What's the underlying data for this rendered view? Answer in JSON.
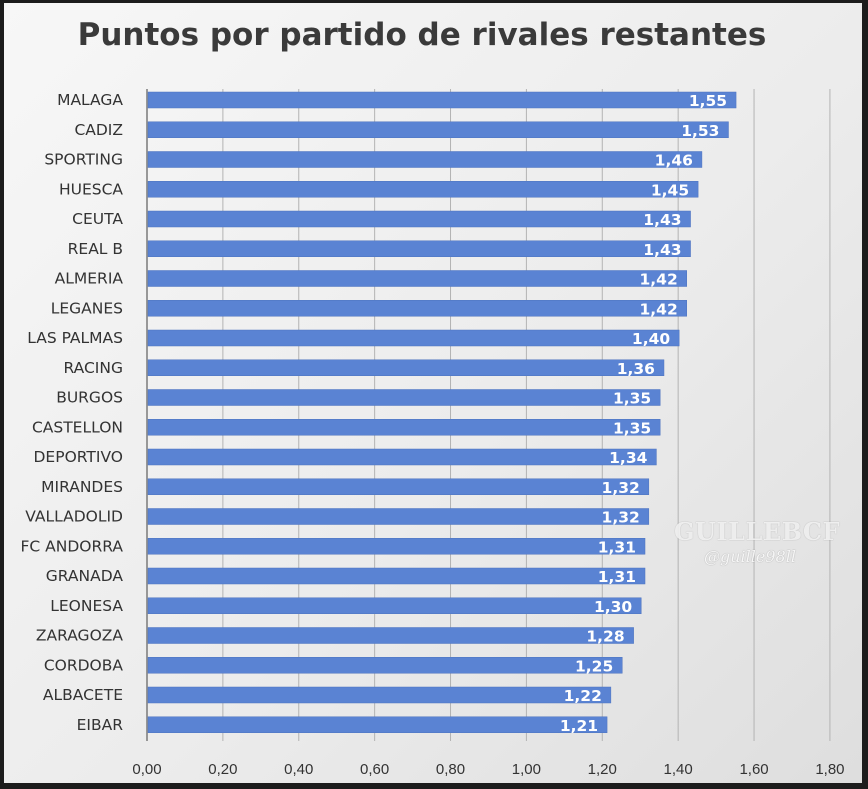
{
  "colors": {
    "bar": "#5a83d3",
    "bar_edge": "#4f74bf",
    "label_text": "#ffffff",
    "axis_text": "#333333",
    "grid": "#b3b3b3"
  },
  "watermark": {
    "brand": "GUILLEBCF",
    "handle": "@guille98ll"
  },
  "chart_data": {
    "type": "bar",
    "orientation": "horizontal",
    "title": "Puntos por partido de rivales restantes",
    "xlabel": "",
    "ylabel": "",
    "xlim": [
      0,
      1.8
    ],
    "x_ticks": [
      "0,00",
      "0,20",
      "0,40",
      "0,60",
      "0,80",
      "1,00",
      "1,20",
      "1,40",
      "1,60",
      "1,80"
    ],
    "grid": "vertical",
    "categories": [
      "MALAGA",
      "CADIZ",
      "SPORTING",
      "HUESCA",
      "CEUTA",
      "REAL  B",
      "ALMERIA",
      "LEGANES",
      "LAS PALMAS",
      "RACING",
      "BURGOS",
      "CASTELLON",
      "DEPORTIVO",
      "MIRANDES",
      "VALLADOLID",
      "FC ANDORRA",
      "GRANADA",
      "LEONESA",
      "ZARAGOZA",
      "CORDOBA",
      "ALBACETE",
      "EIBAR"
    ],
    "values": [
      1.55,
      1.53,
      1.46,
      1.45,
      1.43,
      1.43,
      1.42,
      1.42,
      1.4,
      1.36,
      1.35,
      1.35,
      1.34,
      1.32,
      1.32,
      1.31,
      1.31,
      1.3,
      1.28,
      1.25,
      1.22,
      1.21
    ],
    "data_labels": [
      "1,55",
      "1,53",
      "1,46",
      "1,45",
      "1,43",
      "1,43",
      "1,42",
      "1,42",
      "1,40",
      "1,36",
      "1,35",
      "1,35",
      "1,34",
      "1,32",
      "1,32",
      "1,31",
      "1,31",
      "1,30",
      "1,28",
      "1,25",
      "1,22",
      "1,21"
    ]
  }
}
